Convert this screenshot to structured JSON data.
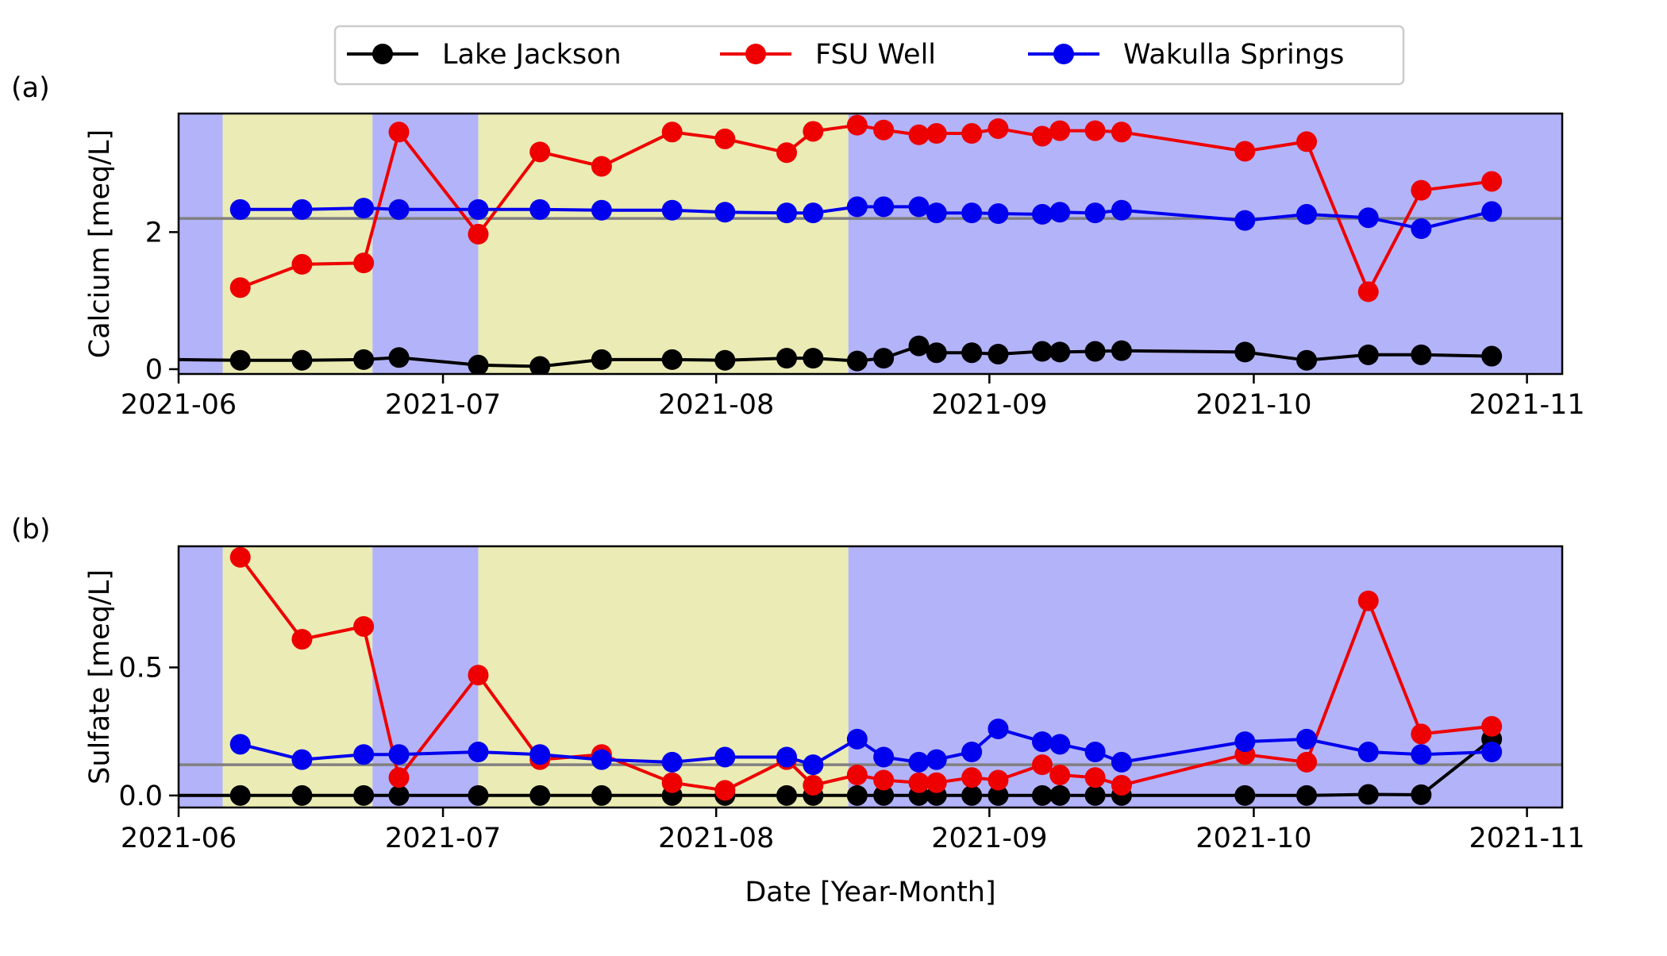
{
  "legend": {
    "placement": "top-center",
    "entries": [
      {
        "label": "Lake Jackson",
        "color": "#000000"
      },
      {
        "label": "FSU Well",
        "color": "#ee0000"
      },
      {
        "label": "Wakulla Springs",
        "color": "#0000ee"
      }
    ]
  },
  "colors": {
    "shade_blue": "#b3b3fa",
    "shade_yellow": "#ebebb5",
    "reference_line": "#808080"
  },
  "chart_data": [
    {
      "type": "line",
      "panel_label": "(a)",
      "title": "",
      "xlabel": "",
      "ylabel": "Calcium [meq/L]",
      "x_axis": "date",
      "xlim": [
        "2021-06-01",
        "2021-11-05"
      ],
      "ylim": [
        -0.07,
        3.73
      ],
      "x_ticks": [
        "2021-06-01",
        "2021-07-01",
        "2021-08-01",
        "2021-09-01",
        "2021-10-01",
        "2021-11-01"
      ],
      "x_tick_labels": [
        "2021-06",
        "2021-07",
        "2021-08",
        "2021-09",
        "2021-10",
        "2021-11"
      ],
      "y_ticks": [
        0,
        2
      ],
      "y_tick_labels": [
        "0",
        "2"
      ],
      "reference_line": 2.2,
      "grid": false,
      "shaded_bands": [
        {
          "start": "2021-06-01",
          "end": "2021-06-06",
          "color": "blue"
        },
        {
          "start": "2021-06-06",
          "end": "2021-06-23",
          "color": "yellow"
        },
        {
          "start": "2021-06-23",
          "end": "2021-07-05",
          "color": "blue"
        },
        {
          "start": "2021-07-05",
          "end": "2021-08-16",
          "color": "yellow"
        },
        {
          "start": "2021-08-16",
          "end": "2021-11-05",
          "color": "blue"
        }
      ],
      "series": [
        {
          "name": "Lake Jackson",
          "color": "#000000",
          "line_start": {
            "x": "2021-06-01",
            "y": 0.14
          },
          "points": [
            {
              "x": "2021-06-08",
              "y": 0.13
            },
            {
              "x": "2021-06-15",
              "y": 0.13
            },
            {
              "x": "2021-06-22",
              "y": 0.14
            },
            {
              "x": "2021-06-26",
              "y": 0.17
            },
            {
              "x": "2021-07-05",
              "y": 0.06
            },
            {
              "x": "2021-07-12",
              "y": 0.04
            },
            {
              "x": "2021-07-19",
              "y": 0.14
            },
            {
              "x": "2021-07-27",
              "y": 0.14
            },
            {
              "x": "2021-08-02",
              "y": 0.13
            },
            {
              "x": "2021-08-09",
              "y": 0.16
            },
            {
              "x": "2021-08-12",
              "y": 0.16
            },
            {
              "x": "2021-08-17",
              "y": 0.12
            },
            {
              "x": "2021-08-20",
              "y": 0.16
            },
            {
              "x": "2021-08-24",
              "y": 0.34
            },
            {
              "x": "2021-08-26",
              "y": 0.24
            },
            {
              "x": "2021-08-30",
              "y": 0.24
            },
            {
              "x": "2021-09-02",
              "y": 0.22
            },
            {
              "x": "2021-09-07",
              "y": 0.26
            },
            {
              "x": "2021-09-09",
              "y": 0.25
            },
            {
              "x": "2021-09-13",
              "y": 0.26
            },
            {
              "x": "2021-09-16",
              "y": 0.27
            },
            {
              "x": "2021-09-30",
              "y": 0.25
            },
            {
              "x": "2021-10-07",
              "y": 0.13
            },
            {
              "x": "2021-10-14",
              "y": 0.21
            },
            {
              "x": "2021-10-20",
              "y": 0.21
            },
            {
              "x": "2021-10-28",
              "y": 0.19
            }
          ]
        },
        {
          "name": "FSU Well",
          "color": "#ee0000",
          "points": [
            {
              "x": "2021-06-08",
              "y": 1.19
            },
            {
              "x": "2021-06-15",
              "y": 1.53
            },
            {
              "x": "2021-06-22",
              "y": 1.55
            },
            {
              "x": "2021-06-26",
              "y": 3.46
            },
            {
              "x": "2021-07-05",
              "y": 1.97
            },
            {
              "x": "2021-07-12",
              "y": 3.17
            },
            {
              "x": "2021-07-19",
              "y": 2.96
            },
            {
              "x": "2021-07-27",
              "y": 3.46
            },
            {
              "x": "2021-08-02",
              "y": 3.36
            },
            {
              "x": "2021-08-09",
              "y": 3.16
            },
            {
              "x": "2021-08-12",
              "y": 3.47
            },
            {
              "x": "2021-08-17",
              "y": 3.56
            },
            {
              "x": "2021-08-20",
              "y": 3.49
            },
            {
              "x": "2021-08-24",
              "y": 3.42
            },
            {
              "x": "2021-08-26",
              "y": 3.44
            },
            {
              "x": "2021-08-30",
              "y": 3.44
            },
            {
              "x": "2021-09-02",
              "y": 3.51
            },
            {
              "x": "2021-09-07",
              "y": 3.4
            },
            {
              "x": "2021-09-09",
              "y": 3.48
            },
            {
              "x": "2021-09-13",
              "y": 3.48
            },
            {
              "x": "2021-09-16",
              "y": 3.46
            },
            {
              "x": "2021-09-30",
              "y": 3.18
            },
            {
              "x": "2021-10-07",
              "y": 3.32
            },
            {
              "x": "2021-10-14",
              "y": 1.13
            },
            {
              "x": "2021-10-20",
              "y": 2.61
            },
            {
              "x": "2021-10-28",
              "y": 2.74
            }
          ]
        },
        {
          "name": "Wakulla Springs",
          "color": "#0000ee",
          "points": [
            {
              "x": "2021-06-08",
              "y": 2.33
            },
            {
              "x": "2021-06-15",
              "y": 2.33
            },
            {
              "x": "2021-06-22",
              "y": 2.35
            },
            {
              "x": "2021-06-26",
              "y": 2.33
            },
            {
              "x": "2021-07-05",
              "y": 2.33
            },
            {
              "x": "2021-07-12",
              "y": 2.33
            },
            {
              "x": "2021-07-19",
              "y": 2.32
            },
            {
              "x": "2021-07-27",
              "y": 2.32
            },
            {
              "x": "2021-08-02",
              "y": 2.29
            },
            {
              "x": "2021-08-09",
              "y": 2.28
            },
            {
              "x": "2021-08-12",
              "y": 2.28
            },
            {
              "x": "2021-08-17",
              "y": 2.37
            },
            {
              "x": "2021-08-20",
              "y": 2.37
            },
            {
              "x": "2021-08-24",
              "y": 2.37
            },
            {
              "x": "2021-08-26",
              "y": 2.28
            },
            {
              "x": "2021-08-30",
              "y": 2.28
            },
            {
              "x": "2021-09-02",
              "y": 2.27
            },
            {
              "x": "2021-09-07",
              "y": 2.26
            },
            {
              "x": "2021-09-09",
              "y": 2.29
            },
            {
              "x": "2021-09-13",
              "y": 2.28
            },
            {
              "x": "2021-09-16",
              "y": 2.32
            },
            {
              "x": "2021-09-30",
              "y": 2.17
            },
            {
              "x": "2021-10-07",
              "y": 2.26
            },
            {
              "x": "2021-10-14",
              "y": 2.21
            },
            {
              "x": "2021-10-20",
              "y": 2.05
            },
            {
              "x": "2021-10-28",
              "y": 2.3
            }
          ]
        }
      ]
    },
    {
      "type": "line",
      "panel_label": "(b)",
      "title": "",
      "xlabel": "Date [Year-Month]",
      "ylabel": "Sulfate [meq/L]",
      "x_axis": "date",
      "xlim": [
        "2021-06-01",
        "2021-11-05"
      ],
      "ylim": [
        -0.047,
        0.973
      ],
      "x_ticks": [
        "2021-06-01",
        "2021-07-01",
        "2021-08-01",
        "2021-09-01",
        "2021-10-01",
        "2021-11-01"
      ],
      "x_tick_labels": [
        "2021-06",
        "2021-07",
        "2021-08",
        "2021-09",
        "2021-10",
        "2021-11"
      ],
      "y_ticks": [
        0,
        0.5
      ],
      "y_tick_labels": [
        "0.0",
        "0.5"
      ],
      "reference_line": 0.12,
      "grid": false,
      "shaded_bands": [
        {
          "start": "2021-06-01",
          "end": "2021-06-06",
          "color": "blue"
        },
        {
          "start": "2021-06-06",
          "end": "2021-06-23",
          "color": "yellow"
        },
        {
          "start": "2021-06-23",
          "end": "2021-07-05",
          "color": "blue"
        },
        {
          "start": "2021-07-05",
          "end": "2021-08-16",
          "color": "yellow"
        },
        {
          "start": "2021-08-16",
          "end": "2021-11-05",
          "color": "blue"
        }
      ],
      "series": [
        {
          "name": "Lake Jackson",
          "color": "#000000",
          "line_start": {
            "x": "2021-06-01",
            "y": 0.0
          },
          "points": [
            {
              "x": "2021-06-08",
              "y": 0.0
            },
            {
              "x": "2021-06-15",
              "y": 0.0
            },
            {
              "x": "2021-06-22",
              "y": 0.0
            },
            {
              "x": "2021-06-26",
              "y": 0.0
            },
            {
              "x": "2021-07-05",
              "y": 0.0
            },
            {
              "x": "2021-07-12",
              "y": 0.0
            },
            {
              "x": "2021-07-19",
              "y": 0.0
            },
            {
              "x": "2021-07-27",
              "y": 0.0
            },
            {
              "x": "2021-08-02",
              "y": 0.0
            },
            {
              "x": "2021-08-09",
              "y": 0.0
            },
            {
              "x": "2021-08-12",
              "y": 0.0
            },
            {
              "x": "2021-08-17",
              "y": 0.0
            },
            {
              "x": "2021-08-20",
              "y": 0.0
            },
            {
              "x": "2021-08-24",
              "y": 0.0
            },
            {
              "x": "2021-08-26",
              "y": 0.0
            },
            {
              "x": "2021-08-30",
              "y": 0.0
            },
            {
              "x": "2021-09-02",
              "y": 0.0
            },
            {
              "x": "2021-09-07",
              "y": 0.0
            },
            {
              "x": "2021-09-09",
              "y": 0.0
            },
            {
              "x": "2021-09-13",
              "y": 0.0
            },
            {
              "x": "2021-09-16",
              "y": 0.0
            },
            {
              "x": "2021-09-30",
              "y": 0.0
            },
            {
              "x": "2021-10-07",
              "y": 0.0
            },
            {
              "x": "2021-10-14",
              "y": 0.004
            },
            {
              "x": "2021-10-20",
              "y": 0.003
            },
            {
              "x": "2021-10-28",
              "y": 0.22
            }
          ]
        },
        {
          "name": "FSU Well",
          "color": "#ee0000",
          "points": [
            {
              "x": "2021-06-08",
              "y": 0.93
            },
            {
              "x": "2021-06-15",
              "y": 0.61
            },
            {
              "x": "2021-06-22",
              "y": 0.66
            },
            {
              "x": "2021-06-26",
              "y": 0.07
            },
            {
              "x": "2021-07-05",
              "y": 0.47
            },
            {
              "x": "2021-07-12",
              "y": 0.14
            },
            {
              "x": "2021-07-19",
              "y": 0.16
            },
            {
              "x": "2021-07-27",
              "y": 0.05
            },
            {
              "x": "2021-08-02",
              "y": 0.02
            },
            {
              "x": "2021-08-09",
              "y": 0.14
            },
            {
              "x": "2021-08-12",
              "y": 0.04
            },
            {
              "x": "2021-08-17",
              "y": 0.08
            },
            {
              "x": "2021-08-20",
              "y": 0.06
            },
            {
              "x": "2021-08-24",
              "y": 0.05
            },
            {
              "x": "2021-08-26",
              "y": 0.05
            },
            {
              "x": "2021-08-30",
              "y": 0.07
            },
            {
              "x": "2021-09-02",
              "y": 0.06
            },
            {
              "x": "2021-09-07",
              "y": 0.12
            },
            {
              "x": "2021-09-09",
              "y": 0.08
            },
            {
              "x": "2021-09-13",
              "y": 0.07
            },
            {
              "x": "2021-09-16",
              "y": 0.04
            },
            {
              "x": "2021-09-30",
              "y": 0.16
            },
            {
              "x": "2021-10-07",
              "y": 0.13
            },
            {
              "x": "2021-10-14",
              "y": 0.76
            },
            {
              "x": "2021-10-20",
              "y": 0.24
            },
            {
              "x": "2021-10-28",
              "y": 0.27
            }
          ]
        },
        {
          "name": "Wakulla Springs",
          "color": "#0000ee",
          "points": [
            {
              "x": "2021-06-08",
              "y": 0.2
            },
            {
              "x": "2021-06-15",
              "y": 0.14
            },
            {
              "x": "2021-06-22",
              "y": 0.16
            },
            {
              "x": "2021-06-26",
              "y": 0.16
            },
            {
              "x": "2021-07-05",
              "y": 0.17
            },
            {
              "x": "2021-07-12",
              "y": 0.16
            },
            {
              "x": "2021-07-19",
              "y": 0.14
            },
            {
              "x": "2021-07-27",
              "y": 0.13
            },
            {
              "x": "2021-08-02",
              "y": 0.15
            },
            {
              "x": "2021-08-09",
              "y": 0.15
            },
            {
              "x": "2021-08-12",
              "y": 0.12
            },
            {
              "x": "2021-08-17",
              "y": 0.22
            },
            {
              "x": "2021-08-20",
              "y": 0.15
            },
            {
              "x": "2021-08-24",
              "y": 0.13
            },
            {
              "x": "2021-08-26",
              "y": 0.14
            },
            {
              "x": "2021-08-30",
              "y": 0.17
            },
            {
              "x": "2021-09-02",
              "y": 0.26
            },
            {
              "x": "2021-09-07",
              "y": 0.21
            },
            {
              "x": "2021-09-09",
              "y": 0.2
            },
            {
              "x": "2021-09-13",
              "y": 0.17
            },
            {
              "x": "2021-09-16",
              "y": 0.13
            },
            {
              "x": "2021-09-30",
              "y": 0.21
            },
            {
              "x": "2021-10-07",
              "y": 0.22
            },
            {
              "x": "2021-10-14",
              "y": 0.17
            },
            {
              "x": "2021-10-20",
              "y": 0.16
            },
            {
              "x": "2021-10-28",
              "y": 0.17
            }
          ]
        }
      ]
    }
  ]
}
